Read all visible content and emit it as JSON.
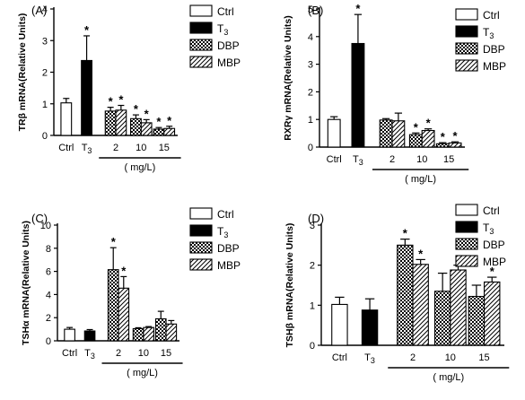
{
  "chart_data": [
    {
      "type": "bar",
      "panel": "(A)",
      "ylabel": "TRβ mRNA(Relative Units)",
      "ylim": [
        0,
        4
      ],
      "yticks": [
        "0",
        "1",
        "2",
        "3",
        "4"
      ],
      "group_labels": [
        "Ctrl",
        "T3",
        "2",
        "10",
        "15"
      ],
      "dose_label": "( mg/L)",
      "legend": [
        "Ctrl",
        "T3",
        "DBP",
        "MBP"
      ],
      "bars": [
        {
          "group": 0,
          "series": "Ctrl",
          "value": 1.03,
          "err": 0.14,
          "sig": false
        },
        {
          "group": 1,
          "series": "T3",
          "value": 2.37,
          "err": 0.78,
          "sig": true
        },
        {
          "group": 2,
          "series": "DBP",
          "value": 0.77,
          "err": 0.12,
          "sig": true
        },
        {
          "group": 2,
          "series": "MBP",
          "value": 0.8,
          "err": 0.15,
          "sig": true
        },
        {
          "group": 3,
          "series": "DBP",
          "value": 0.53,
          "err": 0.12,
          "sig": true
        },
        {
          "group": 3,
          "series": "MBP",
          "value": 0.4,
          "err": 0.1,
          "sig": true
        },
        {
          "group": 4,
          "series": "DBP",
          "value": 0.2,
          "err": 0.05,
          "sig": true
        },
        {
          "group": 4,
          "series": "MBP",
          "value": 0.22,
          "err": 0.07,
          "sig": true
        }
      ]
    },
    {
      "type": "bar",
      "panel": "(B)",
      "ylabel": "RXRγ mRNA(Relative Units)",
      "ylim": [
        0,
        5
      ],
      "yticks": [
        "0",
        "1",
        "2",
        "3",
        "4",
        "5"
      ],
      "group_labels": [
        "Ctrl",
        "T3",
        "2",
        "10",
        "15"
      ],
      "dose_label": "( mg/L)",
      "legend": [
        "Ctrl",
        "T3",
        "DBP",
        "MBP"
      ],
      "bars": [
        {
          "group": 0,
          "series": "Ctrl",
          "value": 1.0,
          "err": 0.1,
          "sig": false
        },
        {
          "group": 1,
          "series": "T3",
          "value": 3.75,
          "err": 1.05,
          "sig": true
        },
        {
          "group": 2,
          "series": "DBP",
          "value": 0.98,
          "err": 0.05,
          "sig": false
        },
        {
          "group": 2,
          "series": "MBP",
          "value": 0.95,
          "err": 0.28,
          "sig": false
        },
        {
          "group": 3,
          "series": "DBP",
          "value": 0.45,
          "err": 0.06,
          "sig": true
        },
        {
          "group": 3,
          "series": "MBP",
          "value": 0.6,
          "err": 0.06,
          "sig": true
        },
        {
          "group": 4,
          "series": "DBP",
          "value": 0.12,
          "err": 0.04,
          "sig": true
        },
        {
          "group": 4,
          "series": "MBP",
          "value": 0.15,
          "err": 0.04,
          "sig": true
        }
      ]
    },
    {
      "type": "bar",
      "panel": "(C)",
      "ylabel": "TSHα mRNA(Relative Units)",
      "ylim": [
        0,
        10
      ],
      "yticks": [
        "0",
        "2",
        "4",
        "6",
        "8",
        "10"
      ],
      "group_labels": [
        "Ctrl",
        "T3",
        "2",
        "10",
        "15"
      ],
      "dose_label": "( mg/L)",
      "legend": [
        "Ctrl",
        "T3",
        "DBP",
        "MBP"
      ],
      "bars": [
        {
          "group": 0,
          "series": "Ctrl",
          "value": 1.0,
          "err": 0.15,
          "sig": false
        },
        {
          "group": 1,
          "series": "T3",
          "value": 0.85,
          "err": 0.12,
          "sig": false
        },
        {
          "group": 2,
          "series": "DBP",
          "value": 6.15,
          "err": 1.9,
          "sig": true
        },
        {
          "group": 2,
          "series": "MBP",
          "value": 4.55,
          "err": 1.0,
          "sig": true
        },
        {
          "group": 3,
          "series": "DBP",
          "value": 1.05,
          "err": 0.08,
          "sig": false
        },
        {
          "group": 3,
          "series": "MBP",
          "value": 1.15,
          "err": 0.08,
          "sig": false
        },
        {
          "group": 4,
          "series": "DBP",
          "value": 1.9,
          "err": 0.65,
          "sig": false
        },
        {
          "group": 4,
          "series": "MBP",
          "value": 1.45,
          "err": 0.3,
          "sig": false
        }
      ]
    },
    {
      "type": "bar",
      "panel": "(D)",
      "ylabel": "TSHβ mRNA(Relative Units)",
      "ylim": [
        0,
        3
      ],
      "yticks": [
        "0",
        "1",
        "2",
        "3"
      ],
      "group_labels": [
        "Ctrl",
        "T3",
        "2",
        "10",
        "15"
      ],
      "dose_label": "( mg/L)",
      "legend": [
        "Ctrl",
        "T3",
        "DBP",
        "MBP"
      ],
      "bars": [
        {
          "group": 0,
          "series": "Ctrl",
          "value": 1.02,
          "err": 0.18,
          "sig": false
        },
        {
          "group": 1,
          "series": "T3",
          "value": 0.88,
          "err": 0.28,
          "sig": false
        },
        {
          "group": 2,
          "series": "DBP",
          "value": 2.5,
          "err": 0.15,
          "sig": true
        },
        {
          "group": 2,
          "series": "MBP",
          "value": 2.02,
          "err": 0.12,
          "sig": true
        },
        {
          "group": 3,
          "series": "DBP",
          "value": 1.35,
          "err": 0.45,
          "sig": false
        },
        {
          "group": 3,
          "series": "MBP",
          "value": 1.88,
          "err": 0.12,
          "sig": true
        },
        {
          "group": 4,
          "series": "DBP",
          "value": 1.22,
          "err": 0.28,
          "sig": false
        },
        {
          "group": 4,
          "series": "MBP",
          "value": 1.58,
          "err": 0.12,
          "sig": true
        }
      ]
    }
  ]
}
